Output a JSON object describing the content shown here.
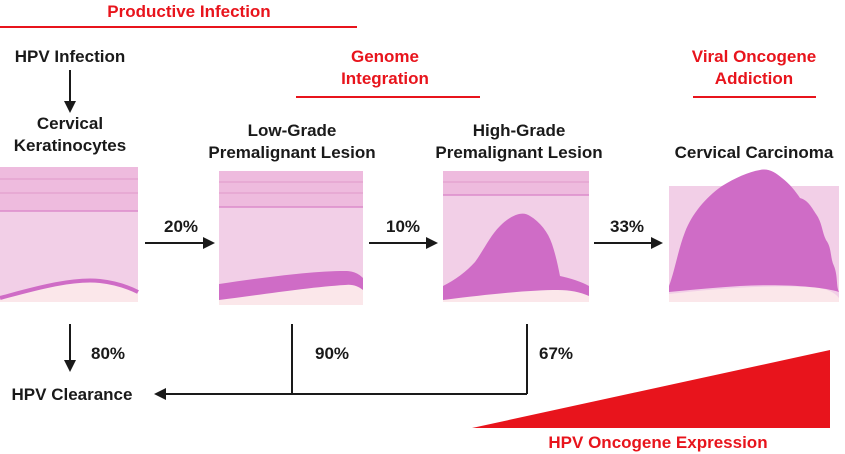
{
  "colors": {
    "red": "#e8141c",
    "black": "#1a1a1a",
    "tissue_light": "#f2cfe7",
    "tissue_mid": "#e9a8d6",
    "tissue_band": "#eebbde",
    "lesion": "#cf6cc6",
    "base": "#fbe7ea"
  },
  "header": {
    "productive_infection": "Productive Infection",
    "genome_integration_line1": "Genome",
    "genome_integration_line2": "Integration",
    "viral_addiction_line1": "Viral Oncogene",
    "viral_addiction_line2": "Addiction"
  },
  "stages": {
    "hpv_infection": "HPV Infection",
    "cervical_line1": "Cervical",
    "cervical_line2": "Keratinocytes",
    "lowgrade_line1": "Low-Grade",
    "lowgrade_line2": "Premalignant Lesion",
    "highgrade_line1": "High-Grade",
    "highgrade_line2": "Premalignant Lesion",
    "carcinoma": "Cervical Carcinoma"
  },
  "transitions": {
    "normal_to_lowgrade": "20%",
    "lowgrade_to_highgrade": "10%",
    "highgrade_to_carcinoma": "33%",
    "normal_clearance": "80%",
    "lowgrade_clearance": "90%",
    "highgrade_clearance": "67%"
  },
  "footer": {
    "hpv_clearance": "HPV Clearance",
    "oncogene_expression": "HPV Oncogene Expression"
  }
}
